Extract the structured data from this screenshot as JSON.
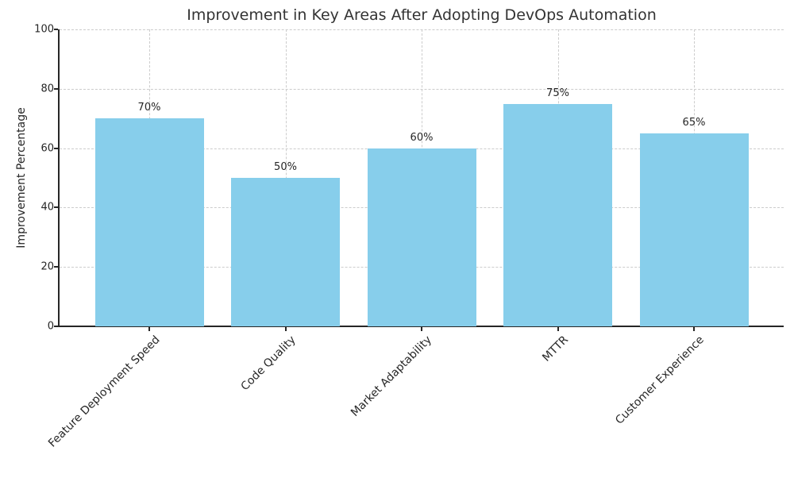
{
  "chart_data": {
    "type": "bar",
    "title": "Improvement in Key Areas After Adopting DevOps Automation",
    "ylabel": "Improvement Percentage",
    "xlabel": "",
    "categories": [
      "Feature Deployment Speed",
      "Code Quality",
      "Market Adaptability",
      "MTTR",
      "Customer Experience"
    ],
    "values": [
      70,
      50,
      60,
      75,
      65
    ],
    "bar_labels": [
      "70%",
      "50%",
      "60%",
      "75%",
      "65%"
    ],
    "ylim": [
      0,
      100
    ],
    "yticks": [
      0,
      20,
      40,
      60,
      80,
      100
    ],
    "x_tick_rotation_deg": 45,
    "grid": "dashed both axes",
    "legend": "none",
    "colors": {
      "bar_fill": "#87CEEB",
      "background": "#FFFFFF",
      "grid": "#CCCCCC",
      "axis": "#262626",
      "title_text": "#333333",
      "tick_text": "#262626"
    }
  }
}
